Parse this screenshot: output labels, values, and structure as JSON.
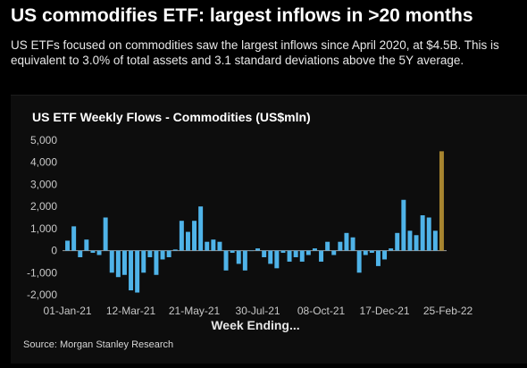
{
  "header": {
    "headline": "US commodifies ETF: largest inflows in >20 months",
    "subtext": "US ETFs focused on commodities saw the largest inflows since April 2020, at $4.5B. This is equivalent to 3.0% of total assets and 3.1 standard deviations above the 5Y average."
  },
  "colors": {
    "bar": "#4fb3e8",
    "highlight": "#a6842f",
    "axis_text": "#c8c8c8",
    "panel": "#0d0d0d"
  },
  "chart_data": {
    "type": "bar",
    "title": "US ETF Weekly Flows - Commodities (US$mln)",
    "xlabel": "Week Ending...",
    "ylabel": "",
    "ylim": [
      -2000,
      5000
    ],
    "yticks": [
      "5,000",
      "4,000",
      "3,000",
      "2,000",
      "1,000",
      "0",
      "-1,000",
      "-2,000"
    ],
    "ytick_values": [
      5000,
      4000,
      3000,
      2000,
      1000,
      0,
      -1000,
      -2000
    ],
    "xtick_labels": [
      "01-Jan-21",
      "12-Mar-21",
      "21-May-21",
      "30-Jul-21",
      "08-Oct-21",
      "17-Dec-21",
      "25-Feb-22"
    ],
    "xtick_indices": [
      0,
      10,
      20,
      30,
      40,
      50,
      60
    ],
    "values": [
      450,
      1100,
      -300,
      500,
      -100,
      -200,
      1500,
      -1000,
      -1200,
      -1100,
      -1800,
      -1900,
      -1000,
      -300,
      -1100,
      -400,
      -300,
      50,
      1350,
      850,
      1350,
      2000,
      400,
      500,
      400,
      -900,
      -100,
      -600,
      -900,
      0,
      100,
      -300,
      -600,
      -800,
      -100,
      -500,
      -300,
      -500,
      -200,
      100,
      -500,
      400,
      -200,
      400,
      800,
      600,
      -1000,
      -200,
      -100,
      -700,
      -400,
      100,
      800,
      2300,
      900,
      700,
      1600,
      1500,
      900,
      4500
    ],
    "highlight_index": 59,
    "source": "Source: Morgan Stanley Research"
  }
}
